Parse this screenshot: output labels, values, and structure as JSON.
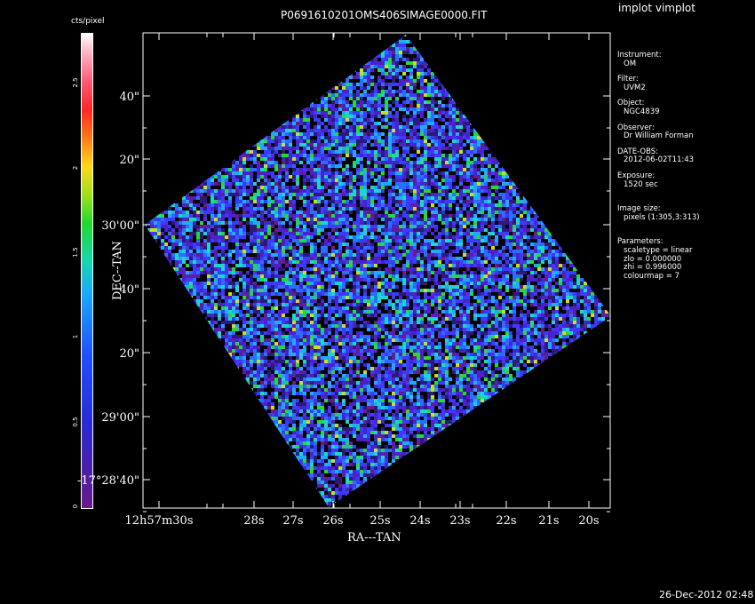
{
  "header": {
    "title": "P0691610201OMS406SIMAGE0000.FIT",
    "tool": "implot vimplot"
  },
  "colorbar": {
    "label": "cts/pixel",
    "ticks": [
      "0",
      "0.5",
      "1",
      "1.5",
      "2",
      "2.5"
    ],
    "tick_values": [
      0,
      0.5,
      1,
      1.5,
      2,
      2.5
    ],
    "max_value": 2.8
  },
  "axes": {
    "xlabel": "RA---TAN",
    "ylabel": "DEC--TAN",
    "x_ticks": [
      "12h57m30s",
      "28s",
      "27s",
      "26s",
      "25s",
      "24s",
      "23s",
      "22s",
      "21s",
      "20s"
    ],
    "y_ticks": [
      "40\"",
      "20\"",
      "30'00\"",
      "40\"",
      "20\"",
      "29'00\"",
      "-17°28'40\""
    ]
  },
  "info": {
    "instrument_label": "Instrument:",
    "instrument_value": "OM",
    "filter_label": "Filter:",
    "filter_value": "UVM2",
    "object_label": "Object:",
    "object_value": "NGC4839",
    "observer_label": "Observer:",
    "observer_value": "Dr William Forman",
    "date_label": "DATE-OBS:",
    "date_value": "2012-06-02T11:43",
    "exposure_label": "Exposure:",
    "exposure_value": "1520 sec",
    "image_size_label": "Image size:",
    "image_size_value": "pixels (1:305,3:313)",
    "parameters_label": "Parameters:",
    "scaletype": "scaletype = linear",
    "zlo": "zlo = 0.000000",
    "zhi": "zhi = 0.996000",
    "colourmap": "colourmap = 7"
  },
  "footer": {
    "timestamp": "26-Dec-2012 02:48"
  },
  "colors": {
    "background": "#000000",
    "foreground": "#ffffff",
    "image_base": "#3a2fd0"
  }
}
